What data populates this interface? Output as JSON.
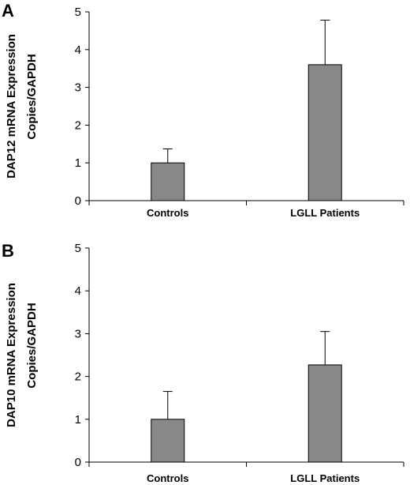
{
  "colors": {
    "bar_fill": "#888888",
    "axis": "#000000"
  },
  "chart_data": [
    {
      "type": "bar",
      "panel_label": "A",
      "ylabel_line1": "DAP12 mRNA Expression",
      "ylabel_line2": "Copies/GAPDH",
      "categories": [
        "Controls",
        "LGLL Patients"
      ],
      "values": [
        1.0,
        3.6
      ],
      "error_upper": [
        1.37,
        4.78
      ],
      "ylim": [
        0,
        5
      ],
      "yticks": [
        "0",
        "1",
        "2",
        "3",
        "4",
        "5"
      ],
      "grid": false,
      "legend": "none"
    },
    {
      "type": "bar",
      "panel_label": "B",
      "ylabel_line1": "DAP10 mRNA Expression",
      "ylabel_line2": "Copies/GAPDH",
      "categories": [
        "Controls",
        "LGLL Patients"
      ],
      "values": [
        1.0,
        2.27
      ],
      "error_upper": [
        1.65,
        3.05
      ],
      "ylim": [
        0,
        5
      ],
      "yticks": [
        "0",
        "1",
        "2",
        "3",
        "4",
        "5"
      ],
      "grid": false,
      "legend": "none"
    }
  ]
}
